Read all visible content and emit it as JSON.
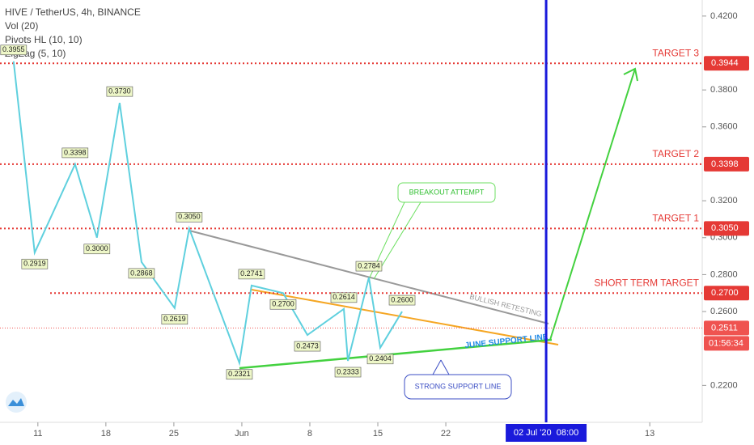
{
  "chart_data": {
    "type": "line",
    "title": "HIVE / TetherUS, 4h, BINANCE",
    "indicators": [
      "Vol (20)",
      "Pivots HL (10, 10)",
      "ZigZag (5, 10)"
    ],
    "x": [
      -2.5,
      -0.33,
      3.83,
      6.08,
      8.42,
      10.67,
      14.08,
      15.58,
      20.75,
      22,
      25.25,
      27.75,
      31.5,
      31.92,
      34.08,
      35.25,
      37.5
    ],
    "values": [
      0.3955,
      0.2919,
      0.3398,
      0.3,
      0.373,
      0.2868,
      0.2619,
      0.305,
      0.2321,
      0.2741,
      0.27,
      0.2473,
      0.2614,
      0.2333,
      0.2784,
      0.2404,
      0.26
    ],
    "value_labels": [
      "0.3955",
      "0.2919",
      "0.3398",
      "0.3000",
      "0.3730",
      "0.2868",
      "0.2619",
      "0.3050",
      "0.2321",
      "0.2741",
      "0.2700",
      "0.2473",
      "0.2614",
      "0.2333",
      "0.2784",
      "0.2404",
      "0.2600"
    ],
    "color": "#5fd0de",
    "xlim": [
      -3.9,
      68.4
    ],
    "xticks": [
      {
        "value": 0,
        "label": "11"
      },
      {
        "value": 7,
        "label": "18"
      },
      {
        "value": 14,
        "label": "25"
      },
      {
        "value": 21,
        "label": "Jun"
      },
      {
        "value": 28,
        "label": "8"
      },
      {
        "value": 35,
        "label": "15"
      },
      {
        "value": 42,
        "label": "22"
      },
      {
        "value": 63,
        "label": "13"
      }
    ],
    "ylim": [
      0.2,
      0.4287
    ],
    "yticks": [
      {
        "value": 0.42,
        "label": "0.4200"
      },
      {
        "value": 0.38,
        "label": "0.3800"
      },
      {
        "value": 0.36,
        "label": "0.3600"
      },
      {
        "value": 0.32,
        "label": "0.3200"
      },
      {
        "value": 0.3,
        "label": "0.3000"
      },
      {
        "value": 0.28,
        "label": "0.2800"
      },
      {
        "value": 0.26,
        "label": "0.2600"
      },
      {
        "value": 0.22,
        "label": "0.2200"
      }
    ],
    "levels": [
      {
        "label": "TARGET 3",
        "value": 0.3944,
        "value_label": "0.3944"
      },
      {
        "label": "TARGET 2",
        "value": 0.3398,
        "value_label": "0.3398"
      },
      {
        "label": "TARGET 1",
        "value": 0.305,
        "value_label": "0.3050"
      },
      {
        "label": "SHORT TERM TARGET",
        "value": 0.27,
        "value_label": "0.2700"
      }
    ],
    "last_price": {
      "value": 0.2511,
      "label": "0.2511"
    },
    "countdown": "01:56:34",
    "cursor": {
      "value": 52.33,
      "label": "02 Jul '20  08:00"
    },
    "annotations": [
      "BREAKOUT ATTEMPT",
      "STRONG SUPPORT LINE",
      "BULLISH RETESTING",
      "JUNE SUPPORT LINE"
    ]
  }
}
